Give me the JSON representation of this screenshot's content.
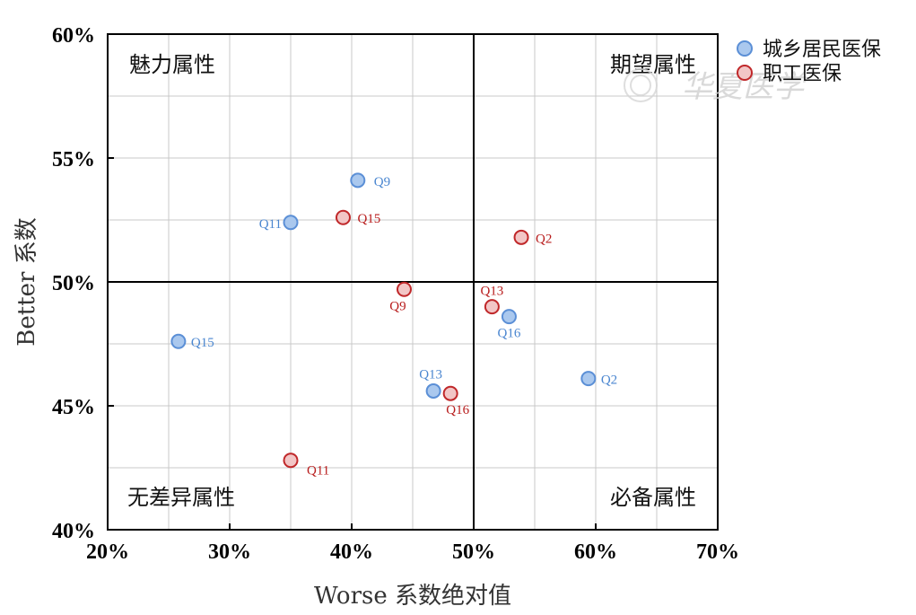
{
  "chart_data": {
    "type": "scatter",
    "xlabel": "Worse 系数绝对值",
    "ylabel": "Better 系数",
    "xlim": [
      0.2,
      0.7
    ],
    "ylim": [
      0.4,
      0.6
    ],
    "x_ticks": [
      0.2,
      0.3,
      0.4,
      0.5,
      0.6,
      0.7
    ],
    "x_tick_labels": [
      "20%",
      "30%",
      "40%",
      "50%",
      "60%",
      "70%"
    ],
    "y_ticks": [
      0.4,
      0.45,
      0.5,
      0.55,
      0.6
    ],
    "y_tick_labels": [
      "40%",
      "45%",
      "50%",
      "55%",
      "60%"
    ],
    "grid": true,
    "divider_x": 0.5,
    "divider_y": 0.5,
    "legend_position": "outside-top-right",
    "quadrant_labels": {
      "top_left": "魅力属性",
      "top_right": "期望属性",
      "bottom_left": "无差异属性",
      "bottom_right": "必备属性"
    },
    "series": [
      {
        "name": "城乡居民医保",
        "fill": "#aac8ee",
        "stroke": "#5b8fd6",
        "label_color": "#4a86d0",
        "points": [
          {
            "label": "Q9",
            "x": 0.405,
            "y": 0.541
          },
          {
            "label": "Q11",
            "x": 0.35,
            "y": 0.524
          },
          {
            "label": "Q15",
            "x": 0.258,
            "y": 0.476
          },
          {
            "label": "Q16",
            "x": 0.529,
            "y": 0.486
          },
          {
            "label": "Q13",
            "x": 0.467,
            "y": 0.456
          },
          {
            "label": "Q2",
            "x": 0.594,
            "y": 0.461
          }
        ]
      },
      {
        "name": "职工医保",
        "fill": "#f2c6c6",
        "stroke": "#c0282a",
        "label_color": "#b81c1c",
        "points": [
          {
            "label": "Q15",
            "x": 0.393,
            "y": 0.526
          },
          {
            "label": "Q2",
            "x": 0.539,
            "y": 0.518
          },
          {
            "label": "Q9",
            "x": 0.443,
            "y": 0.497
          },
          {
            "label": "Q13",
            "x": 0.515,
            "y": 0.49
          },
          {
            "label": "Q16",
            "x": 0.481,
            "y": 0.455
          },
          {
            "label": "Q11",
            "x": 0.35,
            "y": 0.428
          }
        ]
      }
    ]
  },
  "legend": {
    "items": [
      "城乡居民医保",
      "职工医保"
    ]
  },
  "watermark": {
    "text": "华夏医学"
  }
}
